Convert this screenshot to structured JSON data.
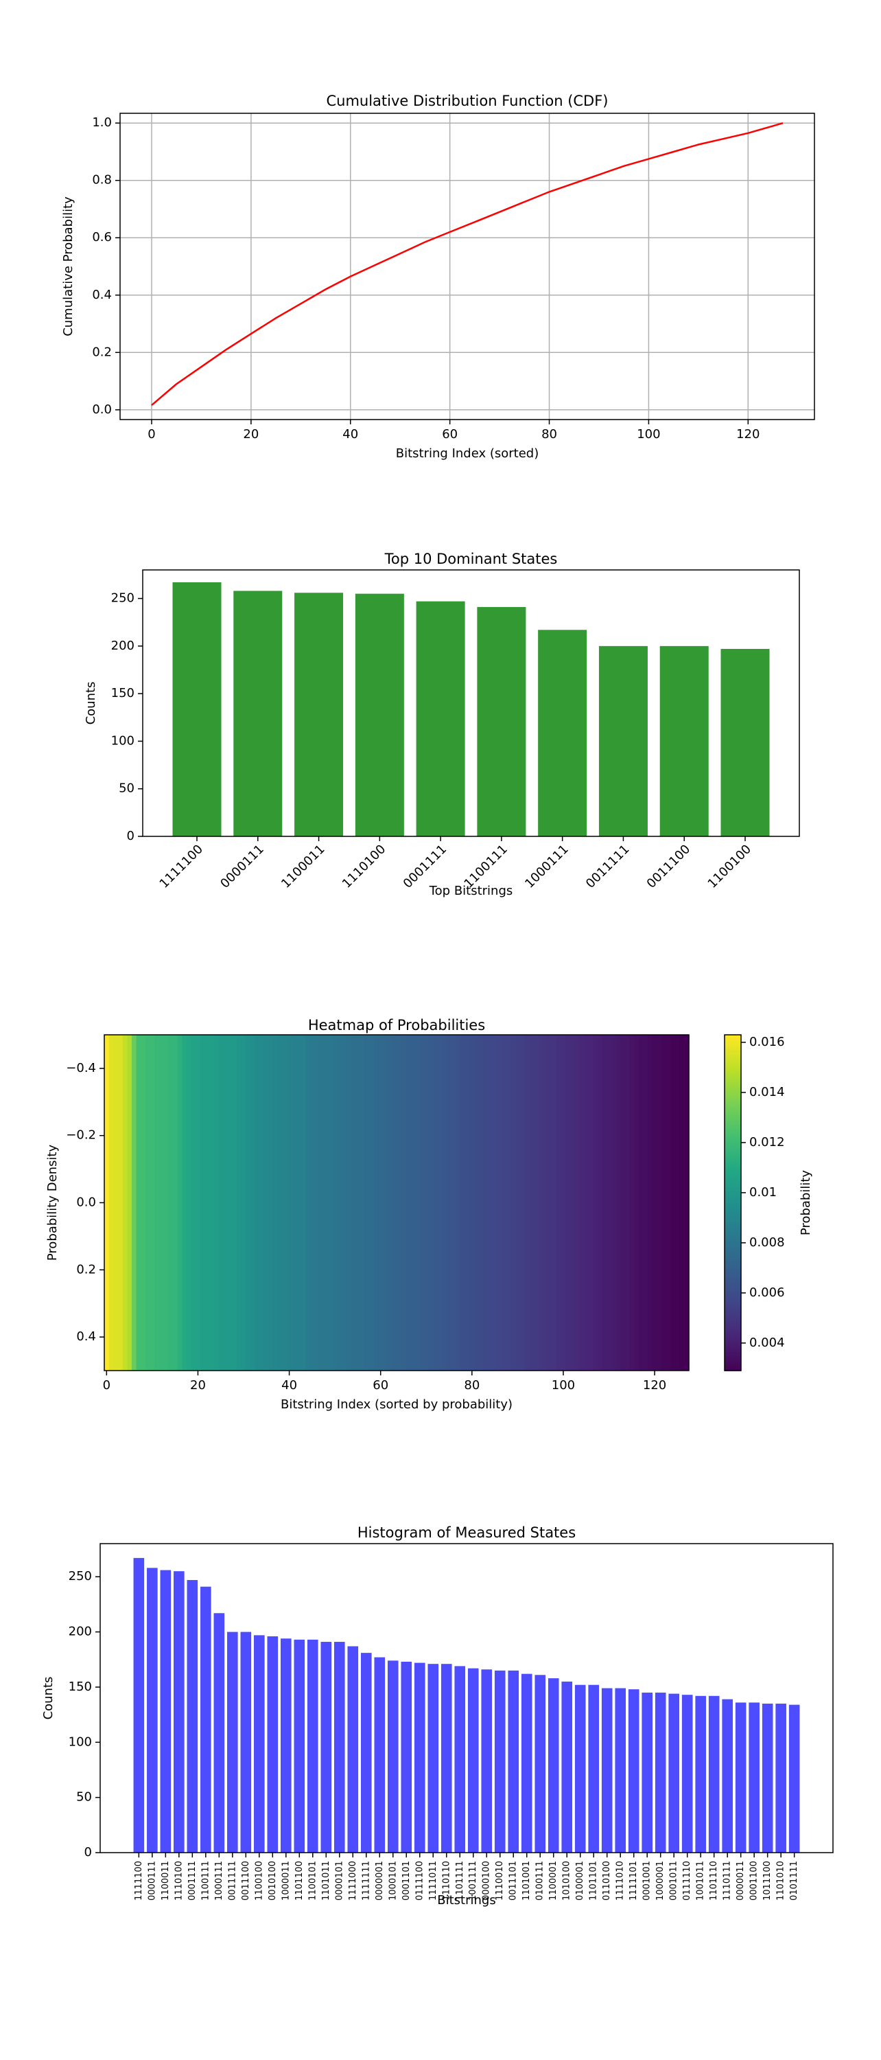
{
  "chart_data": [
    {
      "type": "line",
      "title": "Cumulative Distribution Function (CDF)",
      "xlabel": "Bitstring Index (sorted)",
      "ylabel": "Cumulative Probability",
      "color": "#ff0000",
      "grid": true,
      "x": [
        0,
        5,
        10,
        15,
        20,
        25,
        30,
        35,
        40,
        45,
        50,
        55,
        60,
        65,
        70,
        75,
        80,
        85,
        90,
        95,
        100,
        105,
        110,
        115,
        120,
        125,
        127
      ],
      "values": [
        0.016,
        0.09,
        0.15,
        0.21,
        0.265,
        0.32,
        0.37,
        0.42,
        0.465,
        0.505,
        0.545,
        0.585,
        0.62,
        0.655,
        0.69,
        0.725,
        0.76,
        0.79,
        0.82,
        0.85,
        0.875,
        0.9,
        0.925,
        0.945,
        0.965,
        0.99,
        1.0
      ],
      "xlim": [
        -6.35,
        133.35
      ],
      "xticks": [
        0,
        20,
        40,
        60,
        80,
        100,
        120
      ],
      "ylim": [
        -0.034,
        1.034
      ],
      "yticks": [
        {
          "value": 0,
          "label": "0.0"
        },
        0.2,
        0.4,
        0.6,
        0.8,
        {
          "value": 1,
          "label": "1.0"
        }
      ]
    },
    {
      "type": "bar",
      "title": "Top 10 Dominant States",
      "xlabel": "Top Bitstrings",
      "ylabel": "Counts",
      "color": "#339933",
      "label_rotation": 45,
      "categories": [
        "1111100",
        "0000111",
        "1100011",
        "1110100",
        "0001111",
        "1100111",
        "1000111",
        "0011111",
        "0011100",
        "1100100"
      ],
      "values": [
        267,
        258,
        256,
        255,
        247,
        241,
        217,
        200,
        200,
        197
      ],
      "ylim": [
        0,
        280
      ],
      "yticks": [
        0,
        50,
        100,
        150,
        200,
        250
      ]
    },
    {
      "type": "heatmap",
      "title": "Heatmap of Probabilities",
      "xlabel": "Bitstring Index (sorted by probability)",
      "ylabel": "Probability Density",
      "colorbar_label": "Probability",
      "colormap": "viridis",
      "values": [
        0.0163,
        0.0157,
        0.0156,
        0.0156,
        0.0151,
        0.0147,
        0.0132,
        0.0122,
        0.0122,
        0.012,
        0.012,
        0.0118,
        0.0118,
        0.0118,
        0.0117,
        0.0117,
        0.0114,
        0.011,
        0.0108,
        0.0106,
        0.0106,
        0.0105,
        0.0104,
        0.0104,
        0.0103,
        0.0102,
        0.0101,
        0.0101,
        0.0101,
        0.0099,
        0.0098,
        0.0096,
        0.0095,
        0.0093,
        0.0093,
        0.0091,
        0.0091,
        0.009,
        0.0089,
        0.0089,
        0.0088,
        0.0087,
        0.0087,
        0.0087,
        0.0085,
        0.0083,
        0.0083,
        0.0082,
        0.0082,
        0.0082,
        0.0081,
        0.008,
        0.008,
        0.0079,
        0.0078,
        0.0078,
        0.0077,
        0.0076,
        0.0076,
        0.0075,
        0.0074,
        0.0074,
        0.0073,
        0.0072,
        0.0072,
        0.0071,
        0.007,
        0.007,
        0.0069,
        0.0068,
        0.0068,
        0.0067,
        0.0066,
        0.0066,
        0.0065,
        0.0064,
        0.0064,
        0.0063,
        0.0062,
        0.0062,
        0.0061,
        0.006,
        0.006,
        0.0059,
        0.0058,
        0.0058,
        0.0057,
        0.0056,
        0.0056,
        0.0055,
        0.0054,
        0.0054,
        0.0053,
        0.0052,
        0.0052,
        0.0051,
        0.005,
        0.0049,
        0.0049,
        0.0048,
        0.0047,
        0.0046,
        0.0046,
        0.0045,
        0.0044,
        0.0043,
        0.0043,
        0.0042,
        0.0041,
        0.004,
        0.004,
        0.0039,
        0.0038,
        0.0037,
        0.0037,
        0.0036,
        0.0035,
        0.0034,
        0.0034,
        0.0033,
        0.0032,
        0.0032,
        0.0031,
        0.0031,
        0.003,
        0.003,
        0.0029,
        0.0029
      ],
      "xlim": [
        -0.5,
        127.5
      ],
      "xticks": [
        0,
        20,
        40,
        60,
        80,
        100,
        120
      ],
      "ylim": [
        0.5,
        -0.5
      ],
      "yticks": [
        {
          "value": -0.4,
          "label": "−0.4"
        },
        {
          "value": -0.2,
          "label": "−0.2"
        },
        {
          "value": 0,
          "label": "0.0"
        },
        0.2,
        0.4
      ],
      "clim": [
        0.0029,
        0.0163
      ],
      "cticks": [
        0.004,
        0.006,
        0.008,
        0.01,
        0.012,
        0.014,
        0.016
      ]
    },
    {
      "type": "bar",
      "title": "Histogram of Measured States",
      "xlabel": "Bitstrings",
      "ylabel": "Counts",
      "color": "#4d4dff",
      "label_rotation": 90,
      "categories": [
        "1111100",
        "0000111",
        "1100011",
        "1110100",
        "0001111",
        "1100111",
        "1000111",
        "0011111",
        "0011100",
        "1100100",
        "0010100",
        "1000011",
        "1101100",
        "1100101",
        "1101011",
        "0000101",
        "1111000",
        "1111111",
        "0000001",
        "1000101",
        "0001101",
        "0111100",
        "1111011",
        "1110110",
        "1101111",
        "1001111",
        "0000100",
        "1110010",
        "0011101",
        "1101001",
        "0100111",
        "1100001",
        "1010100",
        "0100001",
        "1101101",
        "0110100",
        "1111010",
        "1111101",
        "0001001",
        "1000001",
        "0001011",
        "0111110",
        "1001011",
        "1101110",
        "1110111",
        "0000011",
        "0001100",
        "1011100",
        "1101010",
        "0101111"
      ],
      "values": [
        267,
        258,
        256,
        255,
        247,
        241,
        217,
        200,
        200,
        197,
        196,
        194,
        193,
        193,
        191,
        191,
        187,
        181,
        177,
        174,
        173,
        172,
        171,
        171,
        169,
        167,
        166,
        165,
        165,
        162,
        161,
        158,
        155,
        152,
        152,
        149,
        149,
        148,
        145,
        145,
        144,
        143,
        142,
        142,
        139,
        136,
        136,
        135,
        135,
        134
      ],
      "ylim": [
        0,
        280
      ],
      "yticks": [
        0,
        50,
        100,
        150,
        200,
        250
      ]
    }
  ]
}
